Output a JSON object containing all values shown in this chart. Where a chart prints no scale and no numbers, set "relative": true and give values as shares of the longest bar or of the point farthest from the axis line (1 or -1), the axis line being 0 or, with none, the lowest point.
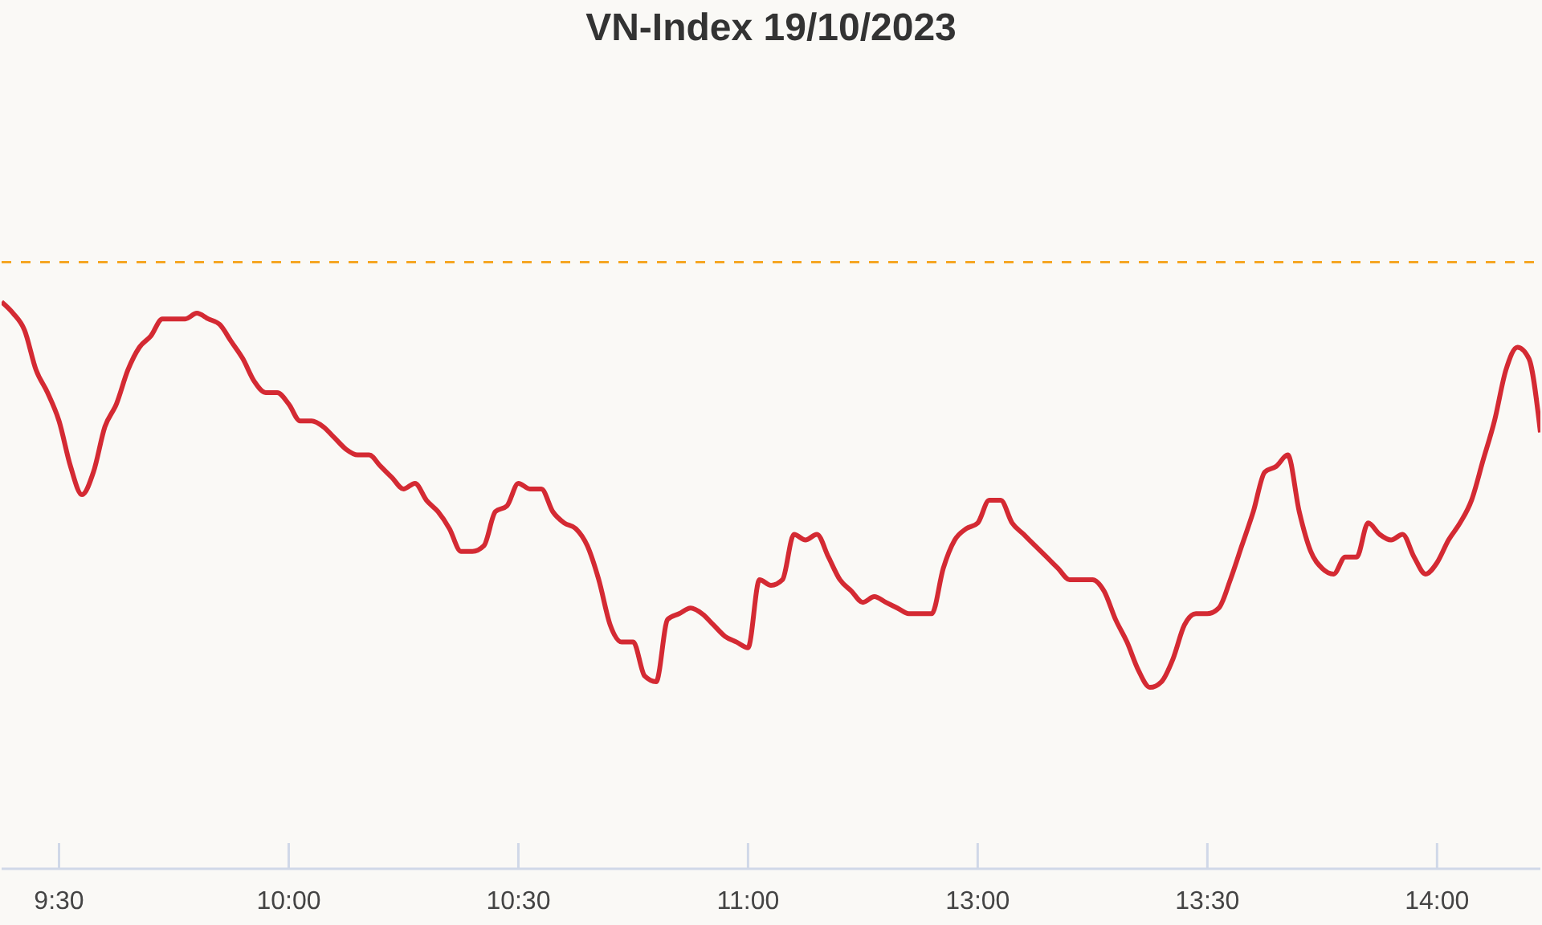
{
  "chart_data": {
    "type": "line",
    "title": "VN-Index 19/10/2023",
    "relative": true,
    "marker": "none",
    "line_style": "solid",
    "categories": [
      null,
      null,
      null,
      null,
      null,
      "9:30",
      null,
      null,
      null,
      null,
      null,
      null,
      null,
      null,
      null,
      null,
      null,
      null,
      null,
      null,
      null,
      null,
      null,
      null,
      null,
      "10:00",
      null,
      null,
      null,
      null,
      null,
      null,
      null,
      null,
      null,
      null,
      null,
      null,
      null,
      null,
      null,
      null,
      null,
      null,
      null,
      "10:30",
      null,
      null,
      null,
      null,
      null,
      null,
      null,
      null,
      null,
      null,
      null,
      null,
      null,
      null,
      null,
      null,
      null,
      null,
      null,
      "11:00",
      null,
      null,
      null,
      null,
      null,
      null,
      null,
      null,
      null,
      null,
      null,
      null,
      null,
      null,
      null,
      null,
      null,
      null,
      null,
      "13:00",
      null,
      null,
      null,
      null,
      null,
      null,
      null,
      null,
      null,
      null,
      null,
      null,
      null,
      null,
      null,
      null,
      null,
      null,
      null,
      "13:30",
      null,
      null,
      null,
      null,
      null,
      null,
      null,
      null,
      null,
      null,
      null,
      null,
      null,
      null,
      null,
      null,
      null,
      null,
      null,
      "14:00",
      null,
      null,
      null,
      null,
      null,
      null,
      null,
      null,
      null
    ],
    "series": [
      {
        "color": "#d42a33",
        "values": [
          1.0,
          0.98,
          0.95,
          0.88,
          0.84,
          0.79,
          0.71,
          0.66,
          0.7,
          0.78,
          0.82,
          0.88,
          0.92,
          0.94,
          0.97,
          0.97,
          0.97,
          0.98,
          0.97,
          0.96,
          0.93,
          0.9,
          0.86,
          0.84,
          0.84,
          0.82,
          0.79,
          0.79,
          0.78,
          0.76,
          0.74,
          0.73,
          0.73,
          0.71,
          0.69,
          0.67,
          0.68,
          0.65,
          0.63,
          0.6,
          0.56,
          0.56,
          0.57,
          0.63,
          0.64,
          0.68,
          0.67,
          0.67,
          0.63,
          0.61,
          0.6,
          0.57,
          0.51,
          0.43,
          0.4,
          0.4,
          0.34,
          0.33,
          0.44,
          0.45,
          0.46,
          0.45,
          0.43,
          0.41,
          0.4,
          0.39,
          0.51,
          0.5,
          0.51,
          0.59,
          0.58,
          0.59,
          0.55,
          0.51,
          0.49,
          0.47,
          0.48,
          0.47,
          0.46,
          0.45,
          0.45,
          0.45,
          0.53,
          0.58,
          0.6,
          0.61,
          0.65,
          0.65,
          0.61,
          0.59,
          0.57,
          0.55,
          0.53,
          0.51,
          0.51,
          0.51,
          0.49,
          0.44,
          0.4,
          0.35,
          0.32,
          0.33,
          0.37,
          0.43,
          0.45,
          0.45,
          0.46,
          0.51,
          0.57,
          0.63,
          0.7,
          0.71,
          0.73,
          0.63,
          0.56,
          0.53,
          0.52,
          0.55,
          0.55,
          0.61,
          0.59,
          0.58,
          0.59,
          0.55,
          0.52,
          0.54,
          0.58,
          0.61,
          0.65,
          0.72,
          0.79,
          0.88,
          0.92,
          0.9,
          0.77
        ]
      }
    ],
    "ref_lines": [
      {
        "axis": "y",
        "value": 1.07,
        "color": "#f5a623",
        "line_style": "dashed"
      }
    ]
  }
}
